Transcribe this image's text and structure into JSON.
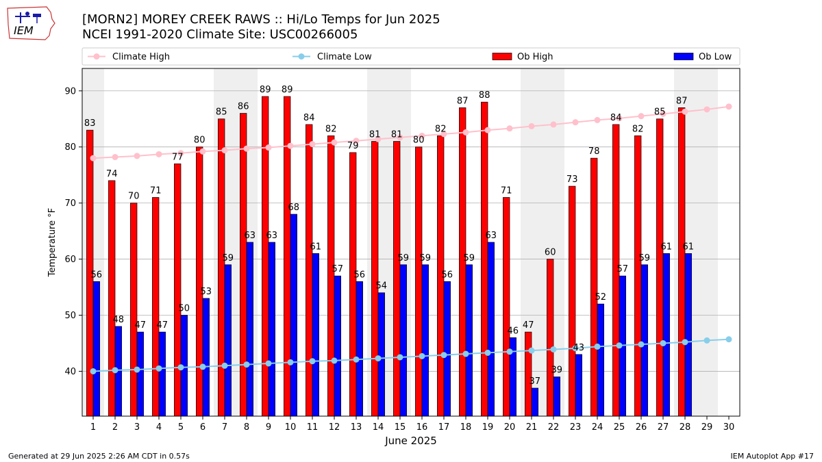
{
  "header": {
    "title_line1": "[MORN2] MOREY CREEK RAWS :: Hi/Lo Temps for Jun 2025",
    "title_line2": "NCEI 1991-2020 Climate Site: USC00266005",
    "logo_text": "IEM"
  },
  "footer": {
    "generated": "Generated at 29 Jun 2025 2:26 AM CDT in 0.57s",
    "app": "IEM Autoplot App #17"
  },
  "colors": {
    "ob_high": "#ff0000",
    "ob_low": "#0000ff",
    "climate_high": "#ffc0cb",
    "climate_low": "#87ceeb",
    "weekend_shade": "#efefef",
    "grid": "#b0b0b0"
  },
  "chart_data": {
    "type": "bar",
    "xlabel": "June 2025",
    "ylabel": "Temperature °F",
    "ylim": [
      32,
      94
    ],
    "yticks": [
      40,
      50,
      60,
      70,
      80,
      90
    ],
    "grid": true,
    "legend_placement": "top (above plot, single row)",
    "days": [
      1,
      2,
      3,
      4,
      5,
      6,
      7,
      8,
      9,
      10,
      11,
      12,
      13,
      14,
      15,
      16,
      17,
      18,
      19,
      20,
      21,
      22,
      23,
      24,
      25,
      26,
      27,
      28,
      29,
      30
    ],
    "shaded_days": [
      1,
      7,
      8,
      14,
      15,
      21,
      22,
      28,
      29
    ],
    "series": [
      {
        "name": "Climate High",
        "kind": "line",
        "values": [
          78.0,
          78.2,
          78.4,
          78.7,
          78.9,
          79.2,
          79.4,
          79.7,
          79.9,
          80.2,
          80.5,
          80.8,
          81.1,
          81.4,
          81.7,
          82.0,
          82.3,
          82.6,
          83.0,
          83.3,
          83.7,
          84.0,
          84.4,
          84.8,
          85.1,
          85.5,
          85.9,
          86.3,
          86.7,
          87.2
        ]
      },
      {
        "name": "Climate Low",
        "kind": "line",
        "values": [
          40.0,
          40.2,
          40.3,
          40.5,
          40.7,
          40.8,
          41.0,
          41.2,
          41.4,
          41.6,
          41.8,
          41.9,
          42.1,
          42.3,
          42.5,
          42.7,
          42.9,
          43.1,
          43.3,
          43.5,
          43.7,
          43.9,
          44.1,
          44.4,
          44.6,
          44.8,
          45.0,
          45.2,
          45.5,
          45.7
        ]
      },
      {
        "name": "Ob High",
        "kind": "bar",
        "values": [
          83,
          74,
          70,
          71,
          77,
          80,
          85,
          86,
          89,
          89,
          84,
          82,
          79,
          81,
          81,
          80,
          82,
          87,
          88,
          71,
          47,
          60,
          73,
          78,
          84,
          82,
          85,
          87,
          null,
          null
        ]
      },
      {
        "name": "Ob Low",
        "kind": "bar",
        "values": [
          56,
          48,
          47,
          47,
          50,
          53,
          59,
          63,
          63,
          68,
          61,
          57,
          56,
          54,
          59,
          59,
          56,
          59,
          63,
          46,
          37,
          39,
          43,
          52,
          57,
          59,
          61,
          61,
          null,
          null
        ]
      }
    ]
  }
}
